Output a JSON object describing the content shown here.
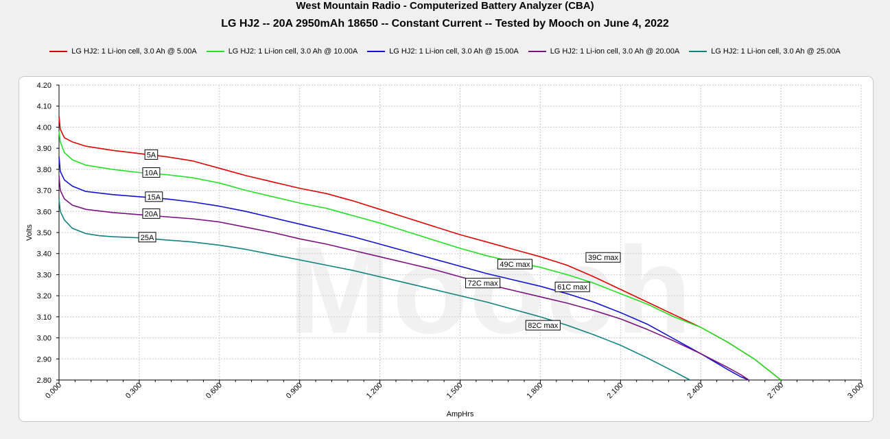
{
  "chart_data": {
    "type": "line",
    "title": "West Mountain Radio - Computerized Battery Analyzer (CBA)",
    "subtitle": "LG HJ2 -- 20A 2950mAh 18650 -- Constant Current -- Tested by Mooch on June 4, 2022",
    "xlabel": "AmpHrs",
    "ylabel": "Volts",
    "xlim": [
      0,
      3.0
    ],
    "ylim": [
      2.8,
      4.2
    ],
    "xticks": [
      "0.000",
      "0.300",
      "0.600",
      "0.900",
      "1.200",
      "1.500",
      "1.800",
      "2.100",
      "2.400",
      "2.700",
      "3.000"
    ],
    "yticks": [
      "2.80",
      "2.90",
      "3.00",
      "3.10",
      "3.20",
      "3.30",
      "3.40",
      "3.50",
      "3.60",
      "3.70",
      "3.80",
      "3.90",
      "4.00",
      "4.10",
      "4.20"
    ],
    "grid": true,
    "legend_position": "top",
    "watermark": "Mooch",
    "series": [
      {
        "name": "LG HJ2: 1 Li-ion cell, 3.0 Ah @ 5.00A",
        "color": "#e00000",
        "x": [
          0.0,
          0.005,
          0.02,
          0.05,
          0.1,
          0.2,
          0.3,
          0.4,
          0.5,
          0.6,
          0.7,
          0.8,
          0.9,
          1.0,
          1.1,
          1.2,
          1.3,
          1.4,
          1.5,
          1.6,
          1.7,
          1.8,
          1.9,
          2.0,
          2.1,
          2.2,
          2.3,
          2.4,
          2.5,
          2.6,
          2.65,
          2.7
        ],
        "values": [
          4.05,
          3.99,
          3.95,
          3.93,
          3.91,
          3.89,
          3.875,
          3.86,
          3.84,
          3.805,
          3.77,
          3.74,
          3.71,
          3.685,
          3.65,
          3.61,
          3.57,
          3.53,
          3.49,
          3.455,
          3.42,
          3.385,
          3.345,
          3.29,
          3.23,
          3.17,
          3.11,
          3.05,
          2.98,
          2.9,
          2.85,
          2.8
        ]
      },
      {
        "name": "LG HJ2: 1 Li-ion cell, 3.0 Ah @ 10.00A",
        "color": "#22e022",
        "x": [
          0.0,
          0.005,
          0.02,
          0.05,
          0.1,
          0.2,
          0.3,
          0.4,
          0.5,
          0.6,
          0.7,
          0.8,
          0.9,
          1.0,
          1.1,
          1.2,
          1.3,
          1.4,
          1.5,
          1.6,
          1.7,
          1.8,
          1.9,
          2.0,
          2.1,
          2.2,
          2.3,
          2.4,
          2.5,
          2.6,
          2.65,
          2.7
        ],
        "values": [
          3.98,
          3.93,
          3.88,
          3.845,
          3.82,
          3.8,
          3.785,
          3.775,
          3.76,
          3.735,
          3.7,
          3.67,
          3.64,
          3.615,
          3.58,
          3.545,
          3.505,
          3.465,
          3.425,
          3.39,
          3.36,
          3.335,
          3.3,
          3.26,
          3.21,
          3.16,
          3.1,
          3.05,
          2.98,
          2.9,
          2.85,
          2.8
        ]
      },
      {
        "name": "LG HJ2: 1 Li-ion cell, 3.0 Ah @ 15.00A",
        "color": "#1010d0",
        "x": [
          0.0,
          0.005,
          0.02,
          0.05,
          0.1,
          0.2,
          0.3,
          0.4,
          0.5,
          0.6,
          0.7,
          0.8,
          0.9,
          1.0,
          1.1,
          1.2,
          1.3,
          1.4,
          1.5,
          1.6,
          1.7,
          1.8,
          1.9,
          2.0,
          2.1,
          2.2,
          2.3,
          2.4,
          2.5,
          2.55,
          2.58
        ],
        "values": [
          3.86,
          3.79,
          3.75,
          3.72,
          3.695,
          3.68,
          3.67,
          3.66,
          3.645,
          3.625,
          3.6,
          3.57,
          3.54,
          3.51,
          3.48,
          3.445,
          3.41,
          3.375,
          3.34,
          3.305,
          3.275,
          3.245,
          3.21,
          3.17,
          3.12,
          3.065,
          2.995,
          2.925,
          2.85,
          2.815,
          2.8
        ]
      },
      {
        "name": "LG HJ2: 1 Li-ion cell, 3.0 Ah @ 20.00A",
        "color": "#7a1080",
        "x": [
          0.0,
          0.005,
          0.02,
          0.05,
          0.1,
          0.2,
          0.3,
          0.4,
          0.5,
          0.6,
          0.7,
          0.8,
          0.9,
          1.0,
          1.1,
          1.2,
          1.3,
          1.4,
          1.5,
          1.6,
          1.7,
          1.8,
          1.9,
          2.0,
          2.1,
          2.2,
          2.3,
          2.4,
          2.5,
          2.55,
          2.58
        ],
        "values": [
          3.77,
          3.7,
          3.66,
          3.63,
          3.61,
          3.595,
          3.585,
          3.575,
          3.565,
          3.55,
          3.525,
          3.5,
          3.47,
          3.445,
          3.415,
          3.385,
          3.355,
          3.325,
          3.29,
          3.255,
          3.225,
          3.195,
          3.165,
          3.13,
          3.09,
          3.04,
          2.985,
          2.925,
          2.86,
          2.825,
          2.8
        ]
      },
      {
        "name": "LG HJ2: 1 Li-ion cell, 3.0 Ah @ 25.00A",
        "color": "#108080",
        "x": [
          0.0,
          0.005,
          0.02,
          0.05,
          0.1,
          0.15,
          0.2,
          0.3,
          0.4,
          0.5,
          0.6,
          0.7,
          0.8,
          0.9,
          1.0,
          1.1,
          1.2,
          1.3,
          1.4,
          1.5,
          1.6,
          1.7,
          1.8,
          1.9,
          2.0,
          2.1,
          2.2,
          2.3,
          2.36
        ],
        "values": [
          3.66,
          3.6,
          3.56,
          3.52,
          3.495,
          3.485,
          3.48,
          3.475,
          3.465,
          3.455,
          3.44,
          3.42,
          3.395,
          3.37,
          3.345,
          3.32,
          3.29,
          3.26,
          3.23,
          3.2,
          3.17,
          3.135,
          3.1,
          3.06,
          3.015,
          2.965,
          2.905,
          2.84,
          2.8
        ]
      }
    ],
    "annotations": [
      {
        "text": "5A",
        "x": 0.345,
        "y": 3.87
      },
      {
        "text": "10A",
        "x": 0.345,
        "y": 3.785
      },
      {
        "text": "15A",
        "x": 0.355,
        "y": 3.67
      },
      {
        "text": "20A",
        "x": 0.345,
        "y": 3.59
      },
      {
        "text": "25A",
        "x": 0.33,
        "y": 3.478
      },
      {
        "text": "39C max",
        "x": 2.035,
        "y": 3.382
      },
      {
        "text": "49C max",
        "x": 1.705,
        "y": 3.35
      },
      {
        "text": "61C max",
        "x": 1.92,
        "y": 3.242
      },
      {
        "text": "72C max",
        "x": 1.585,
        "y": 3.26
      },
      {
        "text": "82C max",
        "x": 1.81,
        "y": 3.06
      }
    ]
  }
}
